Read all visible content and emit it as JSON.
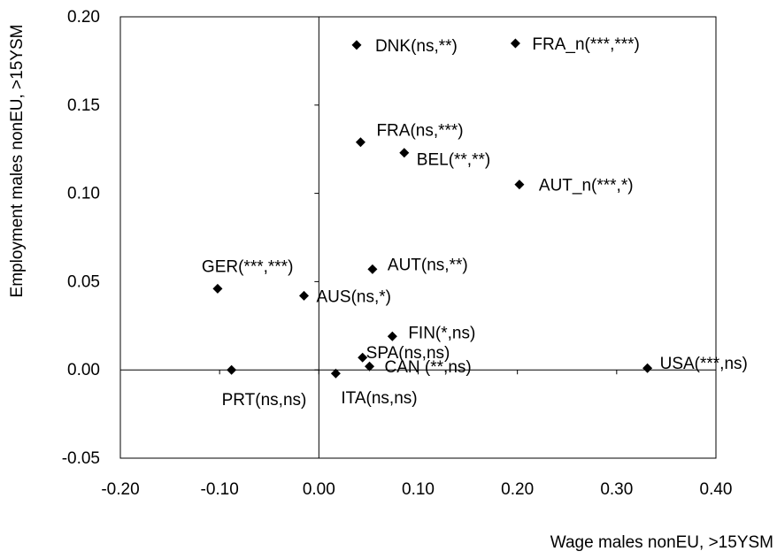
{
  "chart_data": {
    "type": "scatter",
    "title": "",
    "xlabel": "Wage males nonEU, >15YSM",
    "ylabel": "Employment males nonEU, >15YSM",
    "xlim": [
      -0.2,
      0.4
    ],
    "ylim": [
      -0.05,
      0.2
    ],
    "x_ticks": [
      "-0.20",
      "-0.10",
      "0.00",
      "0.10",
      "0.20",
      "0.30",
      "0.40"
    ],
    "y_ticks": [
      "0.20",
      "0.15",
      "0.10",
      "0.05",
      "0.00",
      "-0.05"
    ],
    "grid": false,
    "legend": "none",
    "marker": "diamond",
    "marker_color": "#000000",
    "points": [
      {
        "label": "DNK(ns,**)",
        "x": 0.038,
        "y": 0.184
      },
      {
        "label": "FRA_n(***,***)",
        "x": 0.198,
        "y": 0.185
      },
      {
        "label": "FRA(ns,***)",
        "x": 0.042,
        "y": 0.129
      },
      {
        "label": "BEL(**,**)",
        "x": 0.086,
        "y": 0.123
      },
      {
        "label": "AUT_n(***,*)",
        "x": 0.202,
        "y": 0.105
      },
      {
        "label": "GER(***,***)",
        "x": -0.102,
        "y": 0.046
      },
      {
        "label": "AUS(ns,*)",
        "x": -0.015,
        "y": 0.042
      },
      {
        "label": "AUT(ns,**)",
        "x": 0.054,
        "y": 0.057
      },
      {
        "label": "FIN(*,ns)",
        "x": 0.074,
        "y": 0.019
      },
      {
        "label": "SPA(ns,ns)",
        "x": 0.044,
        "y": 0.007
      },
      {
        "label": "CAN (**,ns)",
        "x": 0.051,
        "y": 0.002
      },
      {
        "label": "USA(***,ns)",
        "x": 0.331,
        "y": 0.001
      },
      {
        "label": "PRT(ns,ns)",
        "x": -0.088,
        "y": 0.0
      },
      {
        "label": "ITA(ns,ns)",
        "x": 0.017,
        "y": -0.002
      }
    ]
  }
}
